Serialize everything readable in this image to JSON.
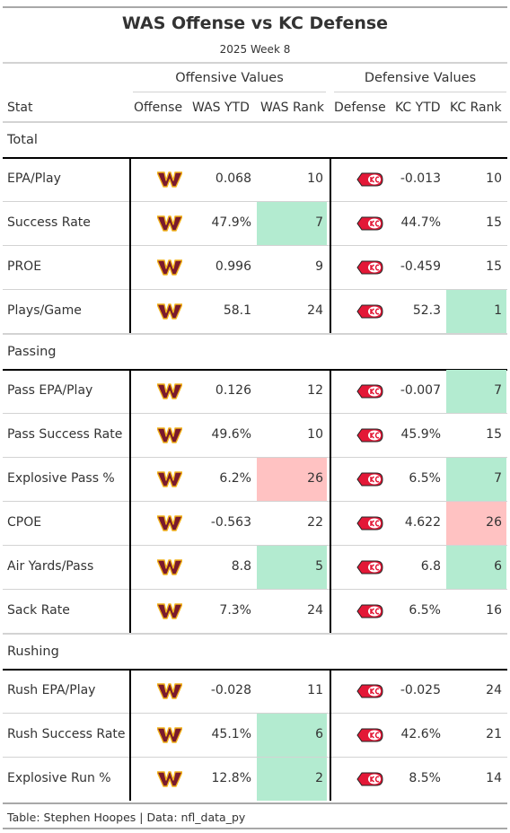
{
  "header": {
    "title": "WAS Offense vs KC Defense",
    "subtitle": "2025 Week 8",
    "offensive_spanner": "Offensive Values",
    "defensive_spanner": "Defensive Values"
  },
  "columns": {
    "stat": "Stat",
    "offense": "Offense",
    "was_ytd": "WAS YTD",
    "was_rank": "WAS Rank",
    "defense": "Defense",
    "kc_ytd": "KC YTD",
    "kc_rank": "KC Rank"
  },
  "colors": {
    "good": "#b3ebd0",
    "bad": "#ffc2c2",
    "was_logo_maroon": "#7a1a2d",
    "was_logo_gold": "#f2b21a",
    "kc_logo_red": "#e31837"
  },
  "icons": {
    "offense": "commanders-logo-icon",
    "defense": "chiefs-logo-icon"
  },
  "groups": [
    {
      "label": "Total",
      "rows": [
        {
          "stat": "EPA/Play",
          "was_ytd": "0.068",
          "was_rank": "10",
          "kc_ytd": "-0.013",
          "kc_rank": "10",
          "was_shade": "",
          "kc_shade": ""
        },
        {
          "stat": "Success Rate",
          "was_ytd": "47.9%",
          "was_rank": "7",
          "kc_ytd": "44.7%",
          "kc_rank": "15",
          "was_shade": "good",
          "kc_shade": ""
        },
        {
          "stat": "PROE",
          "was_ytd": "0.996",
          "was_rank": "9",
          "kc_ytd": "-0.459",
          "kc_rank": "15",
          "was_shade": "",
          "kc_shade": ""
        },
        {
          "stat": "Plays/Game",
          "was_ytd": "58.1",
          "was_rank": "24",
          "kc_ytd": "52.3",
          "kc_rank": "1",
          "was_shade": "",
          "kc_shade": "good"
        }
      ]
    },
    {
      "label": "Passing",
      "rows": [
        {
          "stat": "Pass EPA/Play",
          "was_ytd": "0.126",
          "was_rank": "12",
          "kc_ytd": "-0.007",
          "kc_rank": "7",
          "was_shade": "",
          "kc_shade": "good"
        },
        {
          "stat": "Pass Success Rate",
          "was_ytd": "49.6%",
          "was_rank": "10",
          "kc_ytd": "45.9%",
          "kc_rank": "15",
          "was_shade": "",
          "kc_shade": ""
        },
        {
          "stat": "Explosive Pass %",
          "was_ytd": "6.2%",
          "was_rank": "26",
          "kc_ytd": "6.5%",
          "kc_rank": "7",
          "was_shade": "bad",
          "kc_shade": "good"
        },
        {
          "stat": "CPOE",
          "was_ytd": "-0.563",
          "was_rank": "22",
          "kc_ytd": "4.622",
          "kc_rank": "26",
          "was_shade": "",
          "kc_shade": "bad"
        },
        {
          "stat": "Air Yards/Pass",
          "was_ytd": "8.8",
          "was_rank": "5",
          "kc_ytd": "6.8",
          "kc_rank": "6",
          "was_shade": "good",
          "kc_shade": "good"
        },
        {
          "stat": "Sack Rate",
          "was_ytd": "7.3%",
          "was_rank": "24",
          "kc_ytd": "6.5%",
          "kc_rank": "16",
          "was_shade": "",
          "kc_shade": ""
        }
      ]
    },
    {
      "label": "Rushing",
      "rows": [
        {
          "stat": "Rush EPA/Play",
          "was_ytd": "-0.028",
          "was_rank": "11",
          "kc_ytd": "-0.025",
          "kc_rank": "24",
          "was_shade": "",
          "kc_shade": ""
        },
        {
          "stat": "Rush Success Rate",
          "was_ytd": "45.1%",
          "was_rank": "6",
          "kc_ytd": "42.6%",
          "kc_rank": "21",
          "was_shade": "good",
          "kc_shade": ""
        },
        {
          "stat": "Explosive Run %",
          "was_ytd": "12.8%",
          "was_rank": "2",
          "kc_ytd": "8.5%",
          "kc_rank": "14",
          "was_shade": "good",
          "kc_shade": ""
        }
      ]
    }
  ],
  "footer": {
    "source": "Table: Stephen Hoopes | Data: nfl_data_py"
  }
}
